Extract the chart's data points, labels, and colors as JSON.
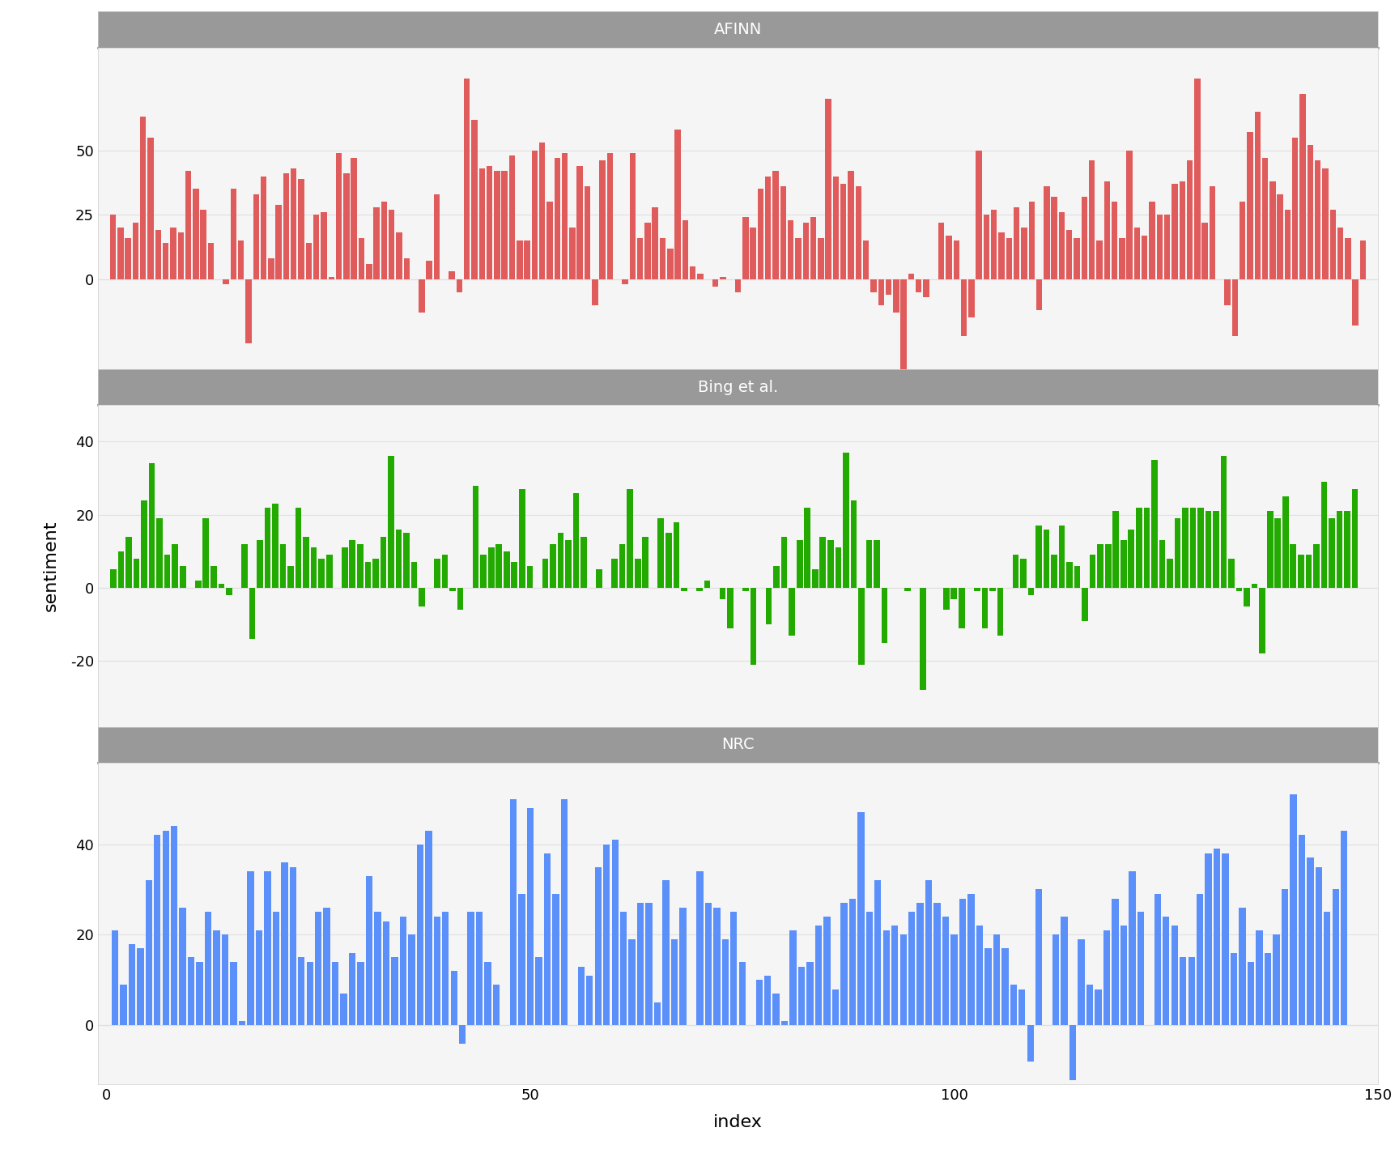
{
  "afinn": [
    25,
    20,
    16,
    22,
    63,
    55,
    19,
    14,
    20,
    18,
    42,
    35,
    27,
    14,
    0,
    -2,
    35,
    15,
    -25,
    33,
    40,
    8,
    29,
    41,
    43,
    39,
    14,
    25,
    26,
    1,
    49,
    41,
    47,
    16,
    6,
    28,
    30,
    27,
    18,
    8,
    0,
    -13,
    7,
    33,
    0,
    3,
    -5,
    78,
    62,
    43,
    44,
    42,
    42,
    48,
    15,
    15,
    50,
    53,
    30,
    47,
    49,
    20,
    44,
    36,
    -10,
    46,
    49,
    0,
    -2,
    49,
    16,
    22,
    28,
    16,
    12,
    58,
    23,
    5,
    2,
    0,
    -3,
    1,
    0,
    -5,
    24,
    20,
    35,
    40,
    42,
    36,
    23,
    16,
    22,
    24,
    16,
    70,
    40,
    37,
    42,
    36,
    15,
    -5,
    -10,
    -6,
    -13,
    -40,
    2,
    -5,
    -7,
    0,
    22,
    17,
    15,
    -22,
    -15,
    50,
    25,
    27,
    18,
    16,
    28,
    20,
    30,
    -12,
    36,
    32,
    26,
    19,
    16,
    32,
    46,
    15,
    38,
    30,
    16,
    50,
    20,
    17,
    30,
    25,
    25,
    37,
    38,
    46,
    78,
    22,
    36,
    0,
    -10,
    -22,
    30,
    57,
    65,
    47,
    38,
    33,
    27,
    55,
    72,
    52,
    46,
    43,
    27,
    20,
    16,
    -18,
    15
  ],
  "bing": [
    5,
    10,
    14,
    8,
    24,
    34,
    19,
    9,
    12,
    6,
    0,
    2,
    19,
    6,
    1,
    -2,
    0,
    12,
    -14,
    13,
    22,
    23,
    12,
    6,
    22,
    14,
    11,
    8,
    9,
    0,
    11,
    13,
    12,
    7,
    8,
    14,
    36,
    16,
    15,
    7,
    -5,
    0,
    8,
    9,
    -1,
    -6,
    0,
    28,
    9,
    11,
    12,
    10,
    7,
    27,
    6,
    0,
    8,
    12,
    15,
    13,
    26,
    14,
    0,
    5,
    0,
    8,
    12,
    27,
    8,
    14,
    0,
    19,
    15,
    18,
    -1,
    0,
    -1,
    2,
    0,
    -3,
    -11,
    0,
    -1,
    -21,
    0,
    -10,
    6,
    14,
    -13,
    13,
    22,
    5,
    14,
    13,
    11,
    37,
    24,
    -21,
    13,
    13,
    -15,
    0,
    0,
    -1,
    0,
    -28,
    0,
    0,
    -6,
    -3,
    -11,
    0,
    -1,
    -11,
    -1,
    -13,
    0,
    9,
    8,
    -2,
    17,
    16,
    9,
    17,
    7,
    6,
    -9,
    9,
    12,
    12,
    21,
    13,
    16,
    22,
    22,
    35,
    13,
    8,
    19,
    22,
    22,
    22,
    21,
    21,
    36,
    8,
    -1,
    -5,
    1,
    -18,
    21,
    19,
    25,
    12,
    9,
    9,
    12,
    29,
    19,
    21,
    21,
    27,
    0
  ],
  "nrc": [
    21,
    9,
    18,
    17,
    32,
    42,
    43,
    44,
    26,
    15,
    14,
    25,
    21,
    20,
    14,
    1,
    34,
    21,
    34,
    25,
    36,
    35,
    15,
    14,
    25,
    26,
    14,
    7,
    16,
    14,
    33,
    25,
    23,
    15,
    24,
    20,
    40,
    43,
    24,
    25,
    12,
    -4,
    25,
    25,
    14,
    9,
    0,
    50,
    29,
    48,
    15,
    38,
    29,
    50,
    0,
    13,
    11,
    35,
    40,
    41,
    25,
    19,
    27,
    27,
    5,
    32,
    19,
    26,
    0,
    34,
    27,
    26,
    19,
    25,
    14,
    0,
    10,
    11,
    7,
    1,
    21,
    13,
    14,
    22,
    24,
    8,
    27,
    28,
    47,
    25,
    32,
    21,
    22,
    20,
    25,
    27,
    32,
    27,
    24,
    20,
    28,
    29,
    22,
    17,
    20,
    17,
    9,
    8,
    -8,
    30,
    0,
    20,
    24,
    -12,
    19,
    9,
    8,
    21,
    28,
    22,
    34,
    25,
    0,
    29,
    24,
    22,
    15,
    15,
    29,
    38,
    39,
    38,
    16,
    26,
    14,
    21,
    16,
    20,
    30,
    51,
    42,
    37,
    35,
    25,
    30,
    43
  ],
  "afinn_color": "#e05c5c",
  "bing_color": "#22aa00",
  "nrc_color": "#5b8ff9",
  "background_color": "#ffffff",
  "panel_background": "#f5f5f5",
  "header_background": "#999999",
  "grid_color": "#e0e0e0",
  "ylabel": "sentiment",
  "xlabel": "index",
  "title_afinn": "AFINN",
  "title_bing": "Bing et al.",
  "title_nrc": "NRC",
  "afinn_yticks": [
    0,
    25,
    50
  ],
  "afinn_ylim": [
    -35,
    90
  ],
  "bing_yticks": [
    -20,
    0,
    20,
    40
  ],
  "bing_ylim": [
    -38,
    50
  ],
  "nrc_yticks": [
    0,
    20,
    40
  ],
  "nrc_ylim": [
    -13,
    58
  ],
  "xticks": [
    0,
    50,
    100,
    150
  ],
  "bar_width": 0.8
}
